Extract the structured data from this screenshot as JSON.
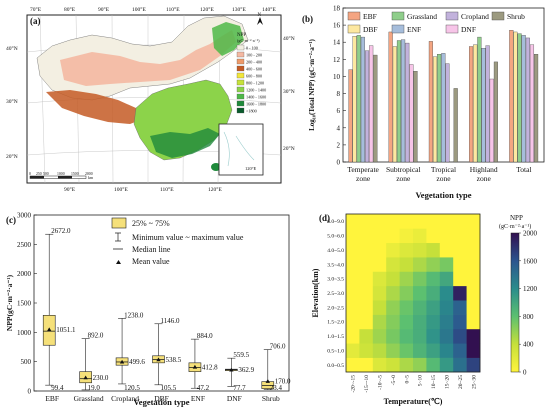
{
  "panels": {
    "a": {
      "label": "(a)",
      "top_lon_labels": [
        "70°E",
        "80°E",
        "90°E",
        "100°E",
        "110°E",
        "120°E",
        "130°E",
        "140°E"
      ],
      "bottom_lon_labels": [
        "90°E",
        "100°E",
        "110°E",
        "120°E"
      ],
      "left_lat_labels": [
        "40°N",
        "30°N",
        "20°N"
      ],
      "right_lat_labels": [
        "40°N",
        "30°N",
        "20°N"
      ],
      "north": "N",
      "legend_title": "NPP",
      "legend_unit": "(gC·m⁻²·a⁻¹)",
      "legend_items": [
        {
          "label": "0 - 100",
          "color": "#f3efe2"
        },
        {
          "label": "100 - 200",
          "color": "#f4b8a2"
        },
        {
          "label": "200 - 400",
          "color": "#ee9a6a"
        },
        {
          "label": "400 - 600",
          "color": "#c45a24"
        },
        {
          "label": "600 - 800",
          "color": "#f2e63a"
        },
        {
          "label": "800 - 1200",
          "color": "#c6e23a"
        },
        {
          "label": "1200 - 1400",
          "color": "#8cd34a"
        },
        {
          "label": "1400 - 1600",
          "color": "#4db848"
        },
        {
          "label": "1600 - 1800",
          "color": "#1f8a3b"
        },
        {
          "label": ">1800",
          "color": "#0a5a2c"
        }
      ],
      "scale_labels": [
        "0",
        "250",
        "500",
        "1000",
        "1500",
        "2000"
      ],
      "scale_unit": "km",
      "inset_lat_label": "20°N",
      "inset_lon_label": "120°E"
    },
    "b": {
      "label": "(b)"
    },
    "c": {
      "label": "(c)"
    },
    "d": {
      "label": "(d)"
    }
  },
  "chart_data": [
    {
      "id": "b",
      "type": "bar",
      "xlabel": "Vegetation type",
      "ylabel": "Log₁₀(Total NPP) (gC·m⁻²·a⁻¹)",
      "ylim": [
        0,
        18
      ],
      "yticks": [
        0,
        2,
        4,
        6,
        8,
        10,
        12,
        14,
        16,
        18
      ],
      "categories": [
        [
          "Temperate",
          "zone"
        ],
        [
          "Subtropical",
          "zone"
        ],
        [
          "Tropical",
          "zone"
        ],
        [
          "Highland",
          "zone"
        ],
        [
          "Total"
        ]
      ],
      "legend_position": "top",
      "series": [
        {
          "name": "EBF",
          "color": "#f4a582",
          "values": [
            10.8,
            15.2,
            14.1,
            13.5,
            15.4
          ]
        },
        {
          "name": "DBF",
          "color": "#fde8a0",
          "values": [
            14.7,
            13.5,
            12.3,
            13.7,
            15.2
          ]
        },
        {
          "name": "Grassland",
          "color": "#8fce8b",
          "values": [
            14.8,
            14.2,
            12.6,
            14.6,
            15.0
          ]
        },
        {
          "name": "ENF",
          "color": "#a6bddb",
          "values": [
            14.6,
            14.3,
            12.7,
            13.3,
            14.8
          ]
        },
        {
          "name": "Cropland",
          "color": "#c2b2dc",
          "values": [
            13.0,
            13.9,
            11.5,
            13.6,
            14.5
          ]
        },
        {
          "name": "DNF",
          "color": "#f7c5e8",
          "values": [
            13.6,
            11.4,
            0,
            9.7,
            13.7
          ]
        },
        {
          "name": "Shrub",
          "color": "#9c9a80",
          "values": [
            12.5,
            10.6,
            8.6,
            11.7,
            12.6
          ]
        }
      ]
    },
    {
      "id": "c",
      "type": "box",
      "xlabel": "Vegetation type",
      "ylabel": "NPP(gC·m⁻²·a⁻¹)",
      "ylim": [
        0,
        3000
      ],
      "yticks": [
        0,
        500,
        1000,
        1500,
        2000,
        2500,
        3000
      ],
      "legend": {
        "box": "25% ~ 75%",
        "whisker": "Minimum value ~ maximum value",
        "median": "Median line",
        "mean": "Mean value"
      },
      "categories": [
        "EBF",
        "Grassland",
        "Cropland",
        "DBF",
        "ENF",
        "DNF",
        "Shrub"
      ],
      "boxes": [
        {
          "min": 99.4,
          "q1": 780,
          "median": 1020,
          "q3": 1290,
          "max": 2672.0,
          "mean": 1051.1,
          "labels": {
            "max": "2672.0",
            "mean": "1051.1",
            "min": "99.4"
          }
        },
        {
          "min": 19.0,
          "q1": 140,
          "median": 210,
          "q3": 330,
          "max": 892.0,
          "mean": 230.0,
          "labels": {
            "max": "892.0",
            "mean": "230.0",
            "min": "19.0"
          }
        },
        {
          "min": 120.5,
          "q1": 440,
          "median": 495,
          "q3": 565,
          "max": 1238.0,
          "mean": 499.6,
          "labels": {
            "max": "1238.0",
            "mean": "499.6",
            "min": "120.5"
          }
        },
        {
          "min": 105.5,
          "q1": 480,
          "median": 535,
          "q3": 600,
          "max": 1146.0,
          "mean": 538.5,
          "labels": {
            "max": "1146.0",
            "mean": "538.5",
            "min": "105.5"
          }
        },
        {
          "min": 47.2,
          "q1": 330,
          "median": 400,
          "q3": 480,
          "max": 884.0,
          "mean": 412.8,
          "labels": {
            "max": "884.0",
            "mean": "412.8",
            "min": "47.2"
          }
        },
        {
          "min": 77.7,
          "q1": 355,
          "median": 362.9,
          "q3": 372,
          "max": 559.5,
          "mean": 362.9,
          "labels": {
            "max": "559.5",
            "mean": "362.9",
            "min": "77.7"
          }
        },
        {
          "min": 23.4,
          "q1": 40,
          "median": 95,
          "q3": 160,
          "max": 706.0,
          "mean": 170.0,
          "labels": {
            "max": "706.0",
            "mean": "170.0",
            "min": "23.4"
          }
        }
      ]
    },
    {
      "id": "d",
      "type": "heatmap",
      "xlabel": "Temperature(℃)",
      "ylabel": "Elevation(km)",
      "x_categories": [
        "-20~-15",
        "-15~-10",
        "-10~-5",
        "-5~0",
        "0~5",
        "5~10",
        "10~15",
        "15~20",
        "20~25",
        "25~30"
      ],
      "y_categories": [
        "0.0~0.5",
        "0.5~1.0",
        "1.0~1.5",
        "1.5~2.0",
        "2.0~2.5",
        "2.5~3.0",
        "3.0~3.5",
        "3.5~4.0",
        "4.0~5.0",
        "5.0~6.0",
        "6.0~9.0"
      ],
      "colorbar": {
        "title": "NPP",
        "unit": "(gC·m⁻²·a⁻¹)",
        "ticks": [
          0,
          400,
          800,
          1200,
          1600,
          2000
        ],
        "range": [
          0,
          2000
        ]
      },
      "values": [
        [
          0,
          0,
          250,
          350,
          500,
          600,
          850,
          1100,
          1400,
          1700
        ],
        [
          200,
          350,
          450,
          600,
          750,
          900,
          1050,
          1250,
          1500,
          2000
        ],
        [
          0,
          400,
          550,
          700,
          850,
          950,
          1150,
          1350,
          1650,
          2000
        ],
        [
          0,
          0,
          500,
          650,
          800,
          950,
          1100,
          1300,
          1550,
          0
        ],
        [
          0,
          0,
          400,
          600,
          750,
          900,
          1050,
          1250,
          1500,
          0
        ],
        [
          0,
          0,
          300,
          500,
          650,
          800,
          950,
          1200,
          1900,
          0
        ],
        [
          0,
          0,
          250,
          400,
          550,
          700,
          850,
          1000,
          0,
          0
        ],
        [
          0,
          0,
          0,
          300,
          400,
          500,
          600,
          700,
          0,
          0
        ],
        [
          0,
          0,
          0,
          150,
          250,
          300,
          400,
          0,
          0,
          0
        ],
        [
          0,
          0,
          0,
          0,
          80,
          150,
          0,
          0,
          0,
          0
        ],
        [
          0,
          0,
          0,
          0,
          0,
          0,
          0,
          0,
          0,
          0
        ]
      ]
    }
  ]
}
